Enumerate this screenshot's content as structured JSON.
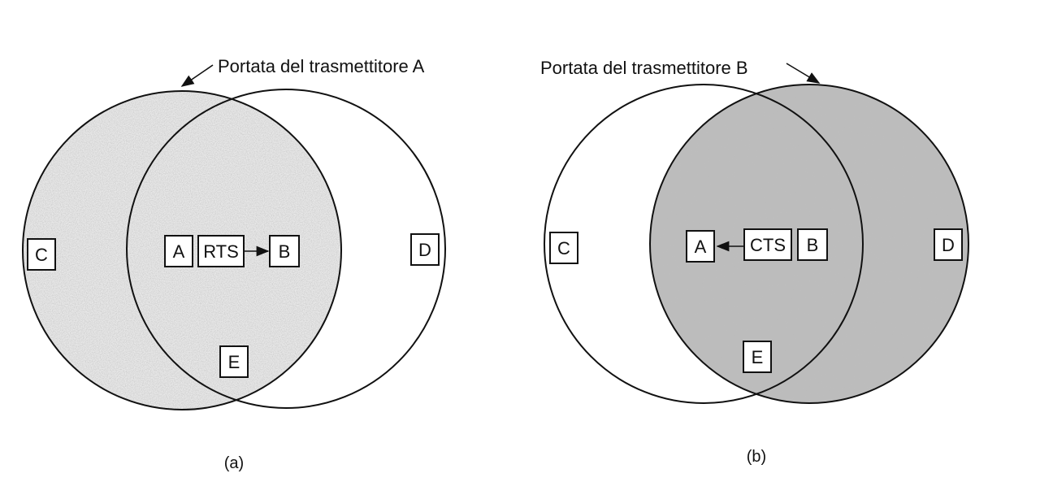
{
  "colors": {
    "ink": "#111111",
    "shade_a": "#c9c9c9",
    "shade_b": "#a9a9a9",
    "background": "#ffffff"
  },
  "panel_a": {
    "range_label": "Portata del trasmettitore A",
    "caption": "(a)",
    "nodes": {
      "c": "C",
      "a": "A",
      "b": "B",
      "d": "D",
      "e": "E"
    },
    "message": "RTS"
  },
  "panel_b": {
    "range_label": "Portata del trasmettitore B",
    "caption": "(b)",
    "nodes": {
      "c": "C",
      "a": "A",
      "b": "B",
      "d": "D",
      "e": "E"
    },
    "message": "CTS"
  }
}
